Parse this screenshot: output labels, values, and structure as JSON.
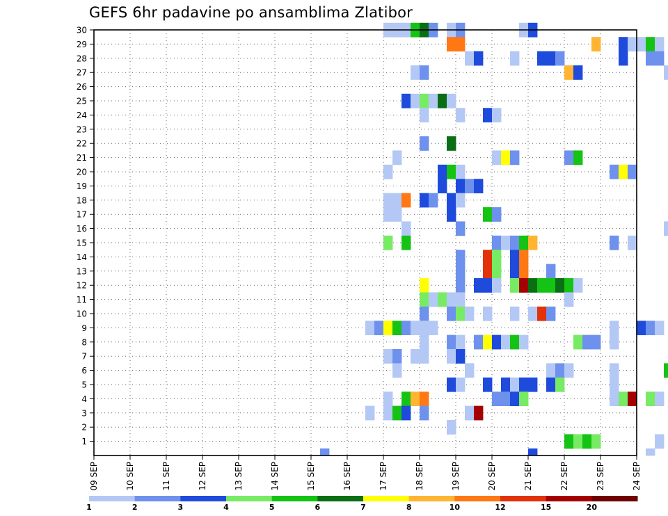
{
  "title": "GEFS 6hr padavine po ansamblima Zlatibor",
  "colors": {
    "frame": "#000000",
    "grid": "#666666",
    "levels": [
      "#b4c8f5",
      "#6e91ee",
      "#1e4bdc",
      "#78eb64",
      "#14c314",
      "#0a6e14",
      "#ffff00",
      "#ffb432",
      "#ff7814",
      "#e1320a",
      "#a50000",
      "#6e0000"
    ]
  },
  "chart_data": {
    "type": "heatmap",
    "title": "GEFS 6hr padavine po ansamblima Zlatibor",
    "x_tick_labels": [
      "09 SEP",
      "10 SEP",
      "11 SEP",
      "12 SEP",
      "13 SEP",
      "14 SEP",
      "15 SEP",
      "16 SEP",
      "17 SEP",
      "18 SEP",
      "19 SEP",
      "20 SEP",
      "21 SEP",
      "22 SEP",
      "23 SEP",
      "24 SEP"
    ],
    "x_range": [
      "09 SEP 00z",
      "24 SEP 00z"
    ],
    "time_step_hours": 6,
    "y_tick_labels": [
      "1",
      "2",
      "3",
      "4",
      "5",
      "6",
      "7",
      "8",
      "9",
      "10",
      "11",
      "12",
      "13",
      "14",
      "15",
      "16",
      "17",
      "18",
      "19",
      "20",
      "21",
      "22",
      "23",
      "24",
      "25",
      "26",
      "27",
      "28",
      "29",
      "30"
    ],
    "y_range": [
      0,
      30
    ],
    "grid": true,
    "legend_position": "bottom",
    "legend_levels": [
      "1",
      "2",
      "3",
      "4",
      "5",
      "6",
      "7",
      "8",
      "10",
      "12",
      "15",
      "20"
    ],
    "cells": [
      {
        "member": 30,
        "day": 17.0,
        "level": 1
      },
      {
        "member": 30,
        "day": 17.25,
        "level": 1
      },
      {
        "member": 30,
        "day": 17.5,
        "level": 1
      },
      {
        "member": 30,
        "day": 17.75,
        "level": 5
      },
      {
        "member": 30,
        "day": 18.0,
        "level": 6
      },
      {
        "member": 30,
        "day": 18.25,
        "level": 2
      },
      {
        "member": 30,
        "day": 18.75,
        "level": 1
      },
      {
        "member": 30,
        "day": 19.0,
        "level": 2
      },
      {
        "member": 30,
        "day": 20.75,
        "level": 1
      },
      {
        "member": 30,
        "day": 21.0,
        "level": 3
      },
      {
        "member": 29,
        "day": 18.75,
        "level": 9
      },
      {
        "member": 29,
        "day": 19.0,
        "level": 9
      },
      {
        "member": 29,
        "day": 22.75,
        "level": 8
      },
      {
        "member": 29,
        "day": 23.5,
        "level": 3
      },
      {
        "member": 29,
        "day": 23.75,
        "level": 1
      },
      {
        "member": 29,
        "day": 24.0,
        "level": 1
      },
      {
        "member": 29,
        "day": 24.25,
        "level": 5
      },
      {
        "member": 29,
        "day": 24.5,
        "level": 1
      },
      {
        "member": 28,
        "day": 19.25,
        "level": 1
      },
      {
        "member": 28,
        "day": 19.5,
        "level": 3
      },
      {
        "member": 28,
        "day": 20.5,
        "level": 1
      },
      {
        "member": 28,
        "day": 21.25,
        "level": 3
      },
      {
        "member": 28,
        "day": 21.5,
        "level": 3
      },
      {
        "member": 28,
        "day": 21.75,
        "level": 2
      },
      {
        "member": 28,
        "day": 23.5,
        "level": 3
      },
      {
        "member": 28,
        "day": 24.25,
        "level": 2
      },
      {
        "member": 28,
        "day": 24.5,
        "level": 2
      },
      {
        "member": 27,
        "day": 17.75,
        "level": 1
      },
      {
        "member": 27,
        "day": 18.0,
        "level": 2
      },
      {
        "member": 27,
        "day": 22.0,
        "level": 8
      },
      {
        "member": 27,
        "day": 22.25,
        "level": 3
      },
      {
        "member": 27,
        "day": 24.75,
        "level": 1
      },
      {
        "member": 25,
        "day": 17.5,
        "level": 3
      },
      {
        "member": 25,
        "day": 17.75,
        "level": 1
      },
      {
        "member": 25,
        "day": 18.0,
        "level": 4
      },
      {
        "member": 25,
        "day": 18.25,
        "level": 1
      },
      {
        "member": 25,
        "day": 18.5,
        "level": 6
      },
      {
        "member": 25,
        "day": 18.75,
        "level": 1
      },
      {
        "member": 24,
        "day": 18.0,
        "level": 1
      },
      {
        "member": 24,
        "day": 19.0,
        "level": 1
      },
      {
        "member": 24,
        "day": 19.75,
        "level": 3
      },
      {
        "member": 24,
        "day": 20.0,
        "level": 1
      },
      {
        "member": 22,
        "day": 18.0,
        "level": 2
      },
      {
        "member": 22,
        "day": 18.75,
        "level": 6
      },
      {
        "member": 21,
        "day": 17.25,
        "level": 1
      },
      {
        "member": 21,
        "day": 20.0,
        "level": 1
      },
      {
        "member": 21,
        "day": 20.25,
        "level": 7
      },
      {
        "member": 21,
        "day": 20.5,
        "level": 2
      },
      {
        "member": 21,
        "day": 22.0,
        "level": 2
      },
      {
        "member": 21,
        "day": 22.25,
        "level": 5
      },
      {
        "member": 20,
        "day": 17.0,
        "level": 1
      },
      {
        "member": 20,
        "day": 18.5,
        "level": 3
      },
      {
        "member": 20,
        "day": 18.75,
        "level": 5
      },
      {
        "member": 20,
        "day": 19.0,
        "level": 1
      },
      {
        "member": 20,
        "day": 23.25,
        "level": 2
      },
      {
        "member": 20,
        "day": 23.5,
        "level": 7
      },
      {
        "member": 20,
        "day": 23.75,
        "level": 2
      },
      {
        "member": 19,
        "day": 18.5,
        "level": 3
      },
      {
        "member": 19,
        "day": 19.0,
        "level": 3
      },
      {
        "member": 19,
        "day": 19.25,
        "level": 2
      },
      {
        "member": 19,
        "day": 19.5,
        "level": 3
      },
      {
        "member": 18,
        "day": 17.0,
        "level": 1
      },
      {
        "member": 18,
        "day": 17.25,
        "level": 1
      },
      {
        "member": 18,
        "day": 17.5,
        "level": 9
      },
      {
        "member": 18,
        "day": 18.0,
        "level": 3
      },
      {
        "member": 18,
        "day": 18.25,
        "level": 2
      },
      {
        "member": 18,
        "day": 18.75,
        "level": 3
      },
      {
        "member": 18,
        "day": 19.0,
        "level": 1
      },
      {
        "member": 17,
        "day": 17.0,
        "level": 1
      },
      {
        "member": 17,
        "day": 17.25,
        "level": 1
      },
      {
        "member": 17,
        "day": 18.75,
        "level": 3
      },
      {
        "member": 17,
        "day": 19.75,
        "level": 5
      },
      {
        "member": 17,
        "day": 20.0,
        "level": 2
      },
      {
        "member": 16,
        "day": 17.5,
        "level": 1
      },
      {
        "member": 16,
        "day": 19.0,
        "level": 2
      },
      {
        "member": 16,
        "day": 24.75,
        "level": 1
      },
      {
        "member": 15,
        "day": 17.0,
        "level": 4
      },
      {
        "member": 15,
        "day": 17.5,
        "level": 5
      },
      {
        "member": 15,
        "day": 20.0,
        "level": 2
      },
      {
        "member": 15,
        "day": 20.25,
        "level": 1
      },
      {
        "member": 15,
        "day": 20.5,
        "level": 2
      },
      {
        "member": 15,
        "day": 20.75,
        "level": 5
      },
      {
        "member": 15,
        "day": 21.0,
        "level": 8
      },
      {
        "member": 15,
        "day": 23.25,
        "level": 2
      },
      {
        "member": 15,
        "day": 23.75,
        "level": 1
      },
      {
        "member": 14,
        "day": 19.0,
        "level": 2
      },
      {
        "member": 14,
        "day": 19.75,
        "level": 10
      },
      {
        "member": 14,
        "day": 20.0,
        "level": 4
      },
      {
        "member": 14,
        "day": 20.5,
        "level": 3
      },
      {
        "member": 14,
        "day": 20.75,
        "level": 9
      },
      {
        "member": 13,
        "day": 19.0,
        "level": 2
      },
      {
        "member": 13,
        "day": 19.75,
        "level": 10
      },
      {
        "member": 13,
        "day": 20.0,
        "level": 4
      },
      {
        "member": 13,
        "day": 20.5,
        "level": 3
      },
      {
        "member": 13,
        "day": 20.75,
        "level": 9
      },
      {
        "member": 13,
        "day": 21.5,
        "level": 2
      },
      {
        "member": 12,
        "day": 18.0,
        "level": 7
      },
      {
        "member": 12,
        "day": 19.0,
        "level": 2
      },
      {
        "member": 12,
        "day": 19.5,
        "level": 3
      },
      {
        "member": 12,
        "day": 19.75,
        "level": 3
      },
      {
        "member": 12,
        "day": 20.0,
        "level": 1
      },
      {
        "member": 12,
        "day": 20.5,
        "level": 4
      },
      {
        "member": 12,
        "day": 20.75,
        "level": 11
      },
      {
        "member": 12,
        "day": 21.0,
        "level": 6
      },
      {
        "member": 12,
        "day": 21.25,
        "level": 5
      },
      {
        "member": 12,
        "day": 21.5,
        "level": 5
      },
      {
        "member": 12,
        "day": 21.75,
        "level": 6
      },
      {
        "member": 12,
        "day": 22.0,
        "level": 5
      },
      {
        "member": 12,
        "day": 22.25,
        "level": 1
      },
      {
        "member": 11,
        "day": 18.0,
        "level": 4
      },
      {
        "member": 11,
        "day": 18.25,
        "level": 1
      },
      {
        "member": 11,
        "day": 18.5,
        "level": 4
      },
      {
        "member": 11,
        "day": 18.75,
        "level": 1
      },
      {
        "member": 11,
        "day": 19.0,
        "level": 1
      },
      {
        "member": 11,
        "day": 22.0,
        "level": 1
      },
      {
        "member": 10,
        "day": 18.0,
        "level": 2
      },
      {
        "member": 10,
        "day": 18.75,
        "level": 2
      },
      {
        "member": 10,
        "day": 19.0,
        "level": 4
      },
      {
        "member": 10,
        "day": 19.25,
        "level": 1
      },
      {
        "member": 10,
        "day": 19.75,
        "level": 1
      },
      {
        "member": 10,
        "day": 20.5,
        "level": 1
      },
      {
        "member": 10,
        "day": 21.0,
        "level": 1
      },
      {
        "member": 10,
        "day": 21.25,
        "level": 10
      },
      {
        "member": 10,
        "day": 21.5,
        "level": 2
      },
      {
        "member": 9,
        "day": 16.5,
        "level": 1
      },
      {
        "member": 9,
        "day": 16.75,
        "level": 2
      },
      {
        "member": 9,
        "day": 17.0,
        "level": 7
      },
      {
        "member": 9,
        "day": 17.25,
        "level": 5
      },
      {
        "member": 9,
        "day": 17.5,
        "level": 2
      },
      {
        "member": 9,
        "day": 17.75,
        "level": 1
      },
      {
        "member": 9,
        "day": 18.0,
        "level": 1
      },
      {
        "member": 9,
        "day": 18.25,
        "level": 1
      },
      {
        "member": 9,
        "day": 23.25,
        "level": 1
      },
      {
        "member": 9,
        "day": 24.0,
        "level": 3
      },
      {
        "member": 9,
        "day": 24.25,
        "level": 2
      },
      {
        "member": 9,
        "day": 24.5,
        "level": 1
      },
      {
        "member": 8,
        "day": 18.0,
        "level": 1
      },
      {
        "member": 8,
        "day": 18.75,
        "level": 2
      },
      {
        "member": 8,
        "day": 19.0,
        "level": 1
      },
      {
        "member": 8,
        "day": 19.5,
        "level": 2
      },
      {
        "member": 8,
        "day": 19.75,
        "level": 7
      },
      {
        "member": 8,
        "day": 20.0,
        "level": 3
      },
      {
        "member": 8,
        "day": 20.25,
        "level": 1
      },
      {
        "member": 8,
        "day": 20.5,
        "level": 5
      },
      {
        "member": 8,
        "day": 20.75,
        "level": 1
      },
      {
        "member": 8,
        "day": 22.25,
        "level": 4
      },
      {
        "member": 8,
        "day": 22.5,
        "level": 2
      },
      {
        "member": 8,
        "day": 22.75,
        "level": 2
      },
      {
        "member": 8,
        "day": 23.25,
        "level": 1
      },
      {
        "member": 7,
        "day": 17.0,
        "level": 1
      },
      {
        "member": 7,
        "day": 17.25,
        "level": 2
      },
      {
        "member": 7,
        "day": 17.75,
        "level": 1
      },
      {
        "member": 7,
        "day": 18.0,
        "level": 1
      },
      {
        "member": 7,
        "day": 18.75,
        "level": 1
      },
      {
        "member": 7,
        "day": 19.0,
        "level": 3
      },
      {
        "member": 6,
        "day": 17.25,
        "level": 1
      },
      {
        "member": 6,
        "day": 19.25,
        "level": 1
      },
      {
        "member": 6,
        "day": 21.5,
        "level": 1
      },
      {
        "member": 6,
        "day": 21.75,
        "level": 2
      },
      {
        "member": 6,
        "day": 22.0,
        "level": 1
      },
      {
        "member": 6,
        "day": 23.25,
        "level": 1
      },
      {
        "member": 6,
        "day": 24.75,
        "level": 5
      },
      {
        "member": 5,
        "day": 18.75,
        "level": 3
      },
      {
        "member": 5,
        "day": 19.0,
        "level": 1
      },
      {
        "member": 5,
        "day": 19.75,
        "level": 3
      },
      {
        "member": 5,
        "day": 20.25,
        "level": 3
      },
      {
        "member": 5,
        "day": 20.5,
        "level": 1
      },
      {
        "member": 5,
        "day": 20.75,
        "level": 3
      },
      {
        "member": 5,
        "day": 21.0,
        "level": 3
      },
      {
        "member": 5,
        "day": 21.5,
        "level": 3
      },
      {
        "member": 5,
        "day": 21.75,
        "level": 4
      },
      {
        "member": 5,
        "day": 23.25,
        "level": 1
      },
      {
        "member": 4,
        "day": 17.0,
        "level": 1
      },
      {
        "member": 4,
        "day": 17.5,
        "level": 5
      },
      {
        "member": 4,
        "day": 17.75,
        "level": 8
      },
      {
        "member": 4,
        "day": 18.0,
        "level": 9
      },
      {
        "member": 4,
        "day": 20.0,
        "level": 2
      },
      {
        "member": 4,
        "day": 20.25,
        "level": 2
      },
      {
        "member": 4,
        "day": 20.5,
        "level": 3
      },
      {
        "member": 4,
        "day": 20.75,
        "level": 4
      },
      {
        "member": 4,
        "day": 23.25,
        "level": 1
      },
      {
        "member": 4,
        "day": 23.5,
        "level": 4
      },
      {
        "member": 4,
        "day": 23.75,
        "level": 11
      },
      {
        "member": 4,
        "day": 24.25,
        "level": 4
      },
      {
        "member": 4,
        "day": 24.5,
        "level": 1
      },
      {
        "member": 3,
        "day": 16.5,
        "level": 1
      },
      {
        "member": 3,
        "day": 17.0,
        "level": 1
      },
      {
        "member": 3,
        "day": 17.25,
        "level": 5
      },
      {
        "member": 3,
        "day": 17.5,
        "level": 3
      },
      {
        "member": 3,
        "day": 18.0,
        "level": 2
      },
      {
        "member": 3,
        "day": 19.25,
        "level": 1
      },
      {
        "member": 3,
        "day": 19.5,
        "level": 11
      },
      {
        "member": 2,
        "day": 18.75,
        "level": 1
      },
      {
        "member": 1,
        "day": 22.0,
        "level": 5
      },
      {
        "member": 1,
        "day": 22.25,
        "level": 4
      },
      {
        "member": 1,
        "day": 22.5,
        "level": 5
      },
      {
        "member": 1,
        "day": 22.75,
        "level": 4
      },
      {
        "member": 1,
        "day": 24.5,
        "level": 1
      },
      {
        "member": 0,
        "day": 15.25,
        "level": 2
      },
      {
        "member": 0,
        "day": 21.0,
        "level": 3
      },
      {
        "member": 0,
        "day": 24.25,
        "level": 1
      }
    ]
  }
}
